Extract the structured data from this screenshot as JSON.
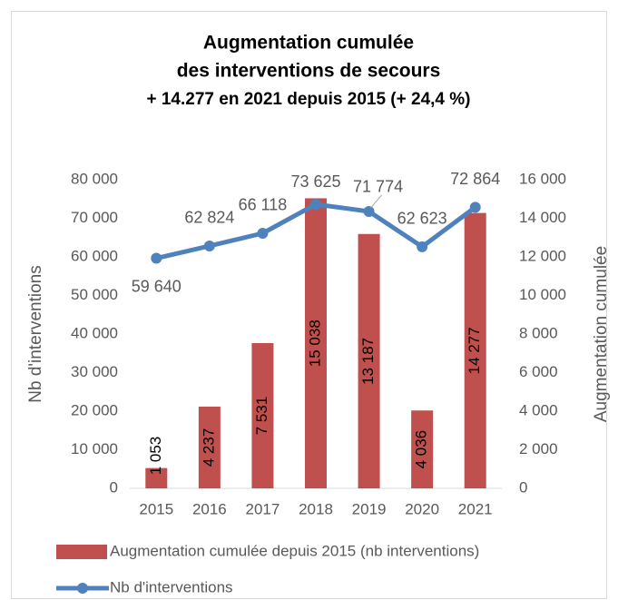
{
  "chart_data": {
    "type": "combo",
    "title": [
      "Augmentation cumulée",
      "des interventions de secours",
      "+ 14.277 en 2021 depuis 2015 (+ 24,4 %)"
    ],
    "ylabel": "Nb d'interventions",
    "y2label": "Augmentation cumulée",
    "categories": [
      "2015",
      "2016",
      "2017",
      "2018",
      "2019",
      "2020",
      "2021"
    ],
    "ylim": [
      0,
      80000
    ],
    "yticks": [
      0,
      {
        "value": 10000,
        "label": "10 000"
      },
      {
        "value": 20000,
        "label": "20 000"
      },
      {
        "value": 30000,
        "label": "30 000"
      },
      {
        "value": 40000,
        "label": "40 000"
      },
      {
        "value": 50000,
        "label": "50 000"
      },
      {
        "value": 60000,
        "label": "60 000"
      },
      {
        "value": 70000,
        "label": "70 000"
      },
      {
        "value": 80000,
        "label": "80 000"
      }
    ],
    "y2lim": [
      0,
      16000
    ],
    "y2ticks": [
      0,
      {
        "value": 2000,
        "label": "2 000"
      },
      {
        "value": 4000,
        "label": "4 000"
      },
      {
        "value": 6000,
        "label": "6 000"
      },
      {
        "value": 8000,
        "label": "8 000"
      },
      {
        "value": 10000,
        "label": "10 000"
      },
      {
        "value": 12000,
        "label": "12 000"
      },
      {
        "value": 14000,
        "label": "14 000"
      },
      {
        "value": 16000,
        "label": "16 000"
      }
    ],
    "series": [
      {
        "name": "Augmentation cumulée depuis 2015 (nb interventions)",
        "type": "bar",
        "axis": "y2",
        "color": "#c0504d",
        "values": [
          1053,
          4237,
          7531,
          15038,
          13187,
          4036,
          14277
        ],
        "value_labels": [
          "1 053",
          "4 237",
          "7 531",
          "15 038",
          "13 187",
          "4 036",
          "14 277"
        ]
      },
      {
        "name": "Nb d'interventions",
        "type": "line",
        "color": "#4f81bd",
        "values": [
          59640,
          62824,
          66118,
          73625,
          71774,
          62623,
          72864
        ],
        "value_labels": [
          "59 640",
          "62 824",
          "66 118",
          "73 625",
          "71 774",
          "62 623",
          "72 864"
        ]
      }
    ]
  }
}
